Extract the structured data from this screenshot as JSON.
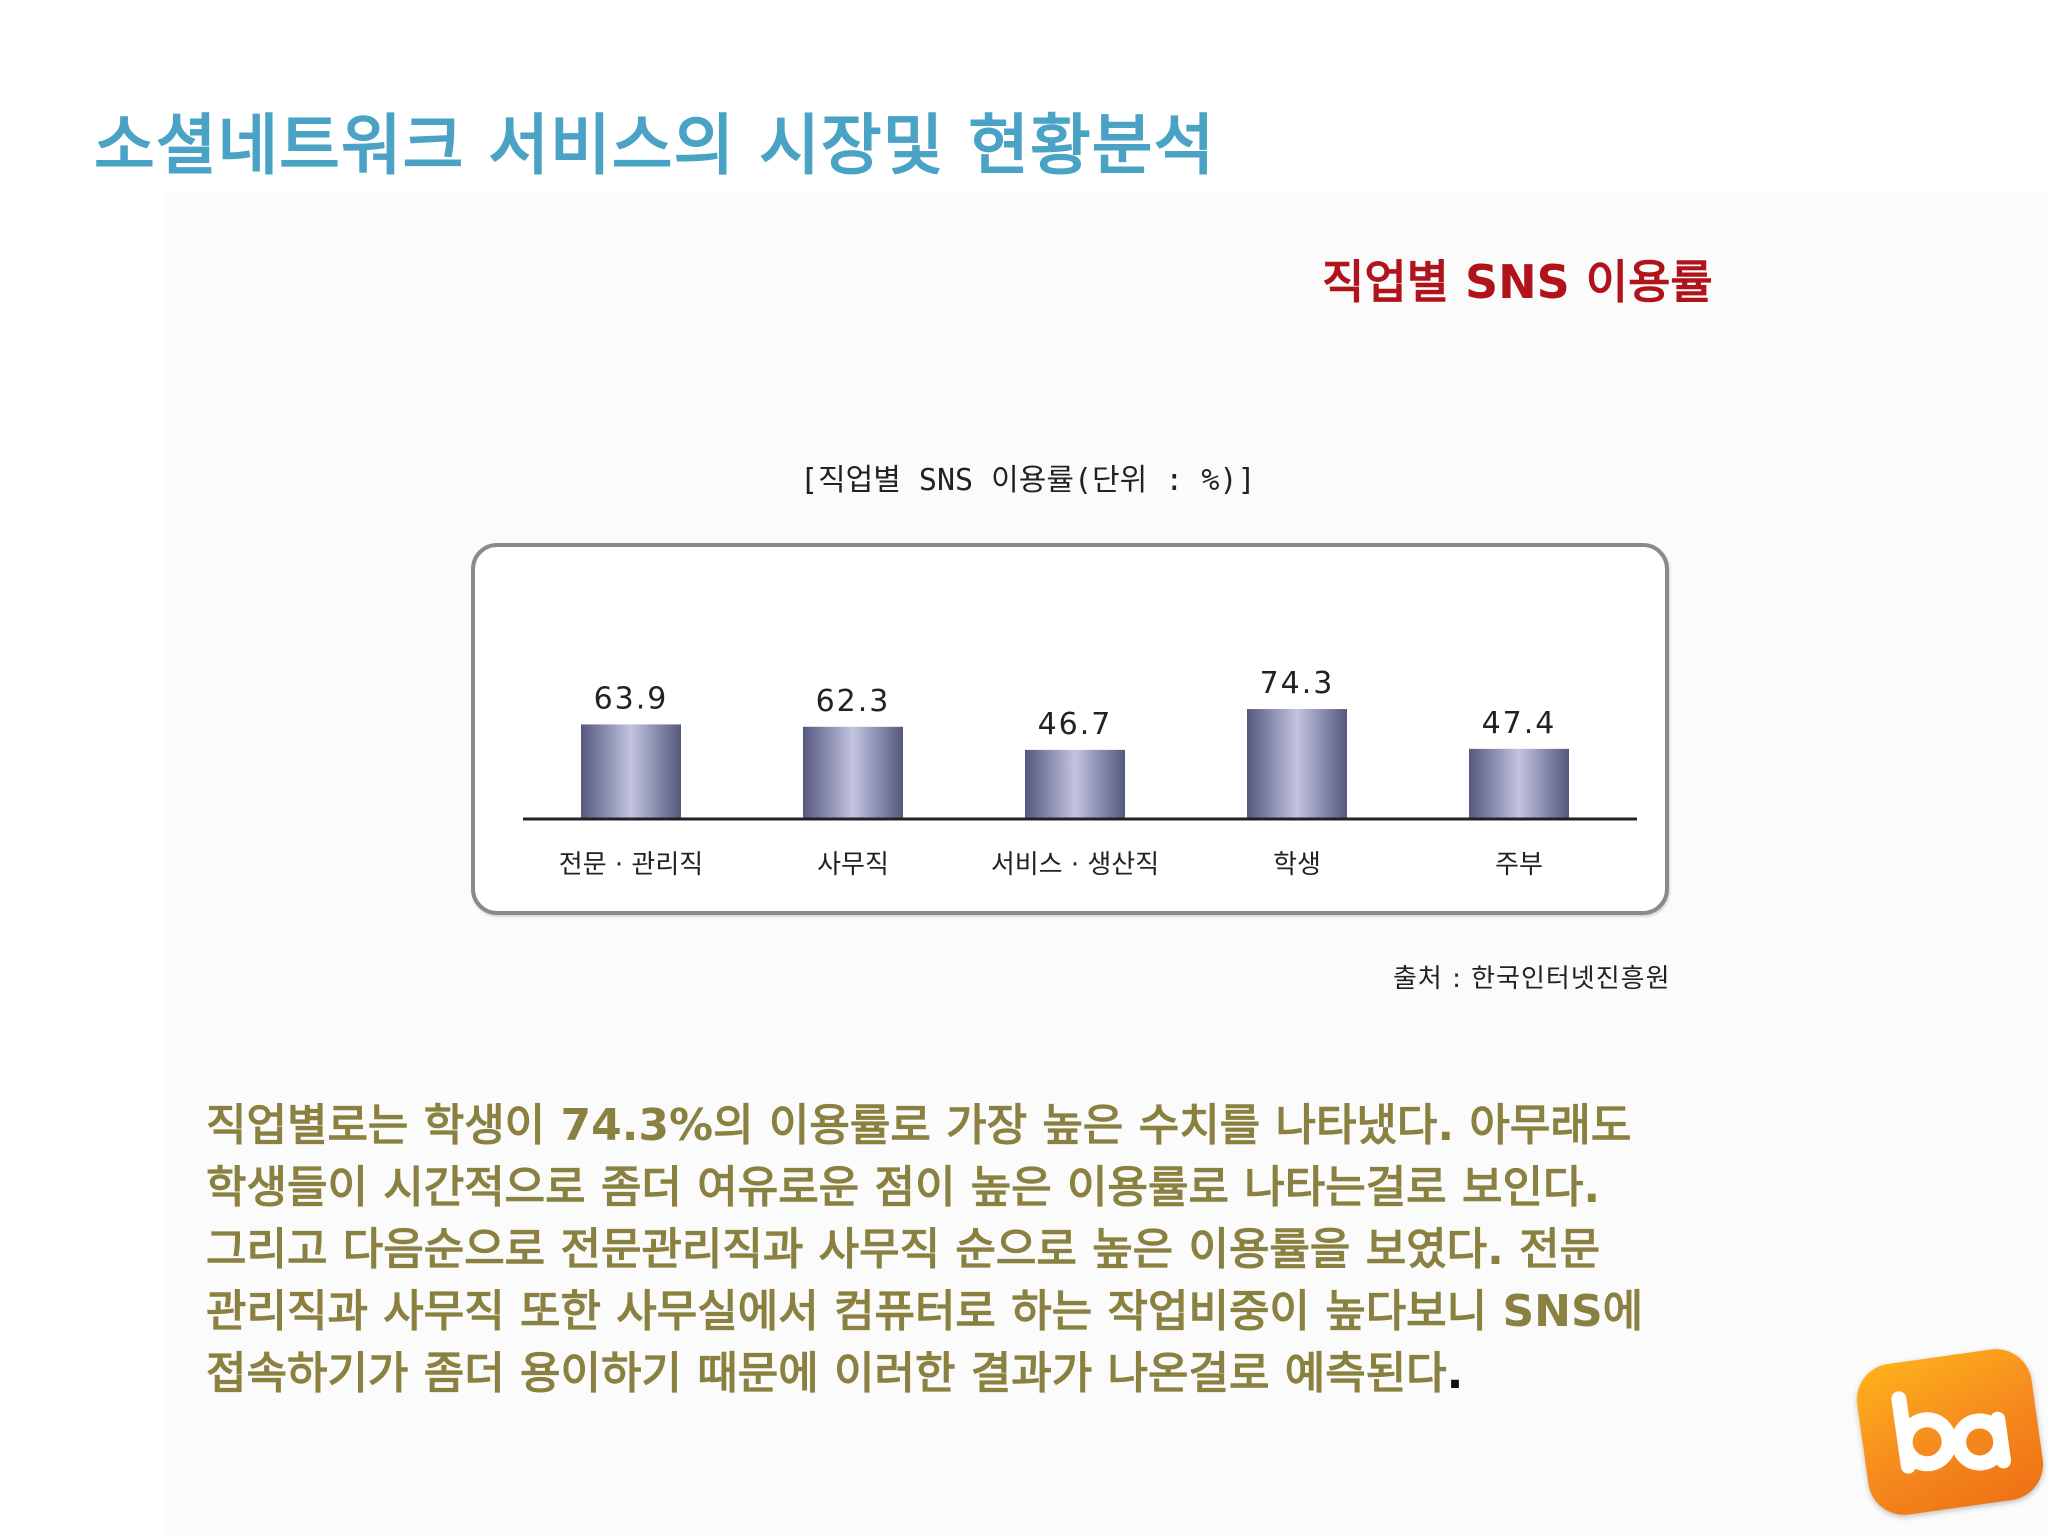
{
  "slide": {
    "title": "소셜네트워크 서비스의 시장및 현황분석",
    "subtitle": "직업별 SNS 이용률",
    "source": "출처 : 한국인터넷진흥원",
    "body_lines": [
      "직업별로는 학생이 74.3%의 이용률로 가장 높은 수치를 나타냈다. 아무래도",
      "학생들이 시간적으로 좀더 여유로운 점이 높은 이용률로 나타는걸로 보인다.",
      "그리고 다음순으로 전문관리직과 사무직 순으로 높은 이용률을 보였다. 전문",
      "관리직과 사무직 또한 사무실에서 컴퓨터로 하는 작업비중이 높다보니 SNS에",
      "접속하기가 좀더 용이하기 때문에 이러한 결과가 나온걸로 예측된다"
    ],
    "body_end": ".",
    "logo": "ba"
  },
  "chart_data": {
    "type": "bar",
    "title": "[직업별 SNS 이용률(단위 : %)]",
    "categories": [
      "전문 · 관리직",
      "사무직",
      "서비스 · 생산직",
      "학생",
      "주부"
    ],
    "values": [
      63.9,
      62.3,
      46.7,
      74.3,
      47.4
    ],
    "value_labels": [
      "63.9",
      "62.3",
      "46.7",
      "74.3",
      "47.4"
    ],
    "ylim": [
      0,
      100
    ],
    "grid": false,
    "legend": "none",
    "colors": {
      "bar_edge": "#55577e",
      "bar_center": "#c2c4e0",
      "axis": "#222222"
    }
  }
}
